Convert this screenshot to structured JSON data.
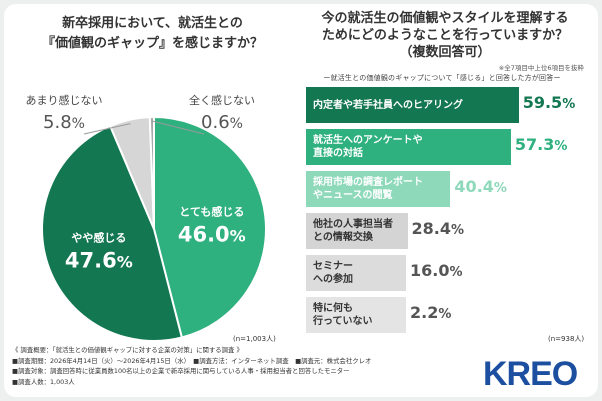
{
  "left_chart": {
    "title_line1": "新卒採用において、就活生との",
    "title_line2": "『価値観のギャップ』を感じますか？",
    "n": "(n=1,003人)"
  },
  "right_chart": {
    "title_line1": "今の就活生の価値観やスタイルを理解する",
    "title_line2": "ためにどのようなことを行っていますか？",
    "title_line3": "（複数回答可）",
    "note": "※全7項目中上位6項目を抜粋",
    "subtitle": "ー就活生との価値観のギャップについて「感じる」と回答した方が回答ー",
    "n": "(n=938人)"
  },
  "chart_data": [
    {
      "type": "pie",
      "slices": [
        {
          "label": "とても感じる",
          "value": 46.0,
          "display": "46.0",
          "color": "#2eb07f"
        },
        {
          "label": "やや感じる",
          "value": 47.6,
          "display": "47.6",
          "color": "#137752"
        },
        {
          "label": "あまり感じない",
          "value": 5.8,
          "display": "5.8",
          "color": "#d6d6d6"
        },
        {
          "label": "全く感じない",
          "value": 0.6,
          "display": "0.6",
          "color": "#a8a8a8"
        }
      ],
      "unit": "%"
    },
    {
      "type": "bar",
      "orientation": "horizontal",
      "categories": [
        "内定者や若手社員へのヒアリング",
        "就活生へのアンケートや\n直接の対話",
        "採用市場の調査レポート\nやニュースの閲覧",
        "他社の人事担当者\nとの情報交換",
        "セミナー\nへの参加",
        "特に何も\n行っていない"
      ],
      "values": [
        59.5,
        57.3,
        40.4,
        28.4,
        16.0,
        2.2
      ],
      "display": [
        "59.5",
        "57.3",
        "40.4",
        "28.4",
        "16.0",
        "2.2"
      ],
      "colors": [
        "#137752",
        "#2eb07f",
        "#8fd9bb",
        "#d4d4d4",
        "#dcdcdc",
        "#e4e4e4"
      ],
      "pct_colors": [
        "#137752",
        "#2eb07f",
        "#8fd9bb",
        "#555555",
        "#555555",
        "#555555"
      ],
      "label_colors": [
        "#ffffff",
        "#ffffff",
        "#ffffff",
        "#333333",
        "#333333",
        "#333333"
      ],
      "unit": "%",
      "xlim": [
        0,
        80
      ]
    }
  ],
  "footer": {
    "line1": "《 調査概要：「就活生との価値観ギャップに対する企業の対策」に関する調査 》",
    "line2": "■調査期間：2026年4月14日（火）〜2026年4月15日（水）　■調査方法：インターネット調査　■調査元：株式会社クレオ",
    "line3": "■調査対象：調査回答時に従業員数100名以上の企業で新卒採用に関与している人事・採用担当者と回答したモニター",
    "line4": "■調査人数：1,003人"
  },
  "logo": {
    "text": "KREO",
    "color": "#1c4fa0"
  }
}
